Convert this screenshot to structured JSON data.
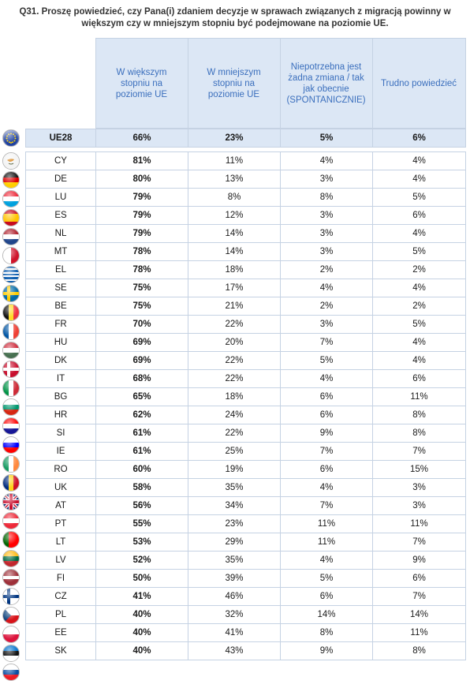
{
  "title_line1": "Q31. Proszę powiedzieć, czy Pana(i) zdaniem decyzje w sprawach związanych z migracją powinny w",
  "title_line2": "większym czy w mniejszym stopniu być podejmowane na poziomie UE.",
  "columns": [
    "W większym stopniu na poziomie UE",
    "W mniejszym stopniu na poziomie UE",
    "Niepotrzebna jest żadna zmiana / tak jak obecnie (SPONTANICZNIE)",
    "Trudno powiedzieć"
  ],
  "ue28": {
    "label": "UE28",
    "values": [
      "66%",
      "23%",
      "5%",
      "6%"
    ]
  },
  "rows": [
    {
      "code": "CY",
      "values": [
        "81%",
        "11%",
        "4%",
        "4%"
      ]
    },
    {
      "code": "DE",
      "values": [
        "80%",
        "13%",
        "3%",
        "4%"
      ]
    },
    {
      "code": "LU",
      "values": [
        "79%",
        "8%",
        "8%",
        "5%"
      ]
    },
    {
      "code": "ES",
      "values": [
        "79%",
        "12%",
        "3%",
        "6%"
      ]
    },
    {
      "code": "NL",
      "values": [
        "79%",
        "14%",
        "3%",
        "4%"
      ]
    },
    {
      "code": "MT",
      "values": [
        "78%",
        "14%",
        "3%",
        "5%"
      ]
    },
    {
      "code": "EL",
      "values": [
        "78%",
        "18%",
        "2%",
        "2%"
      ]
    },
    {
      "code": "SE",
      "values": [
        "75%",
        "17%",
        "4%",
        "4%"
      ]
    },
    {
      "code": "BE",
      "values": [
        "75%",
        "21%",
        "2%",
        "2%"
      ]
    },
    {
      "code": "FR",
      "values": [
        "70%",
        "22%",
        "3%",
        "5%"
      ]
    },
    {
      "code": "HU",
      "values": [
        "69%",
        "20%",
        "7%",
        "4%"
      ]
    },
    {
      "code": "DK",
      "values": [
        "69%",
        "22%",
        "5%",
        "4%"
      ]
    },
    {
      "code": "IT",
      "values": [
        "68%",
        "22%",
        "4%",
        "6%"
      ]
    },
    {
      "code": "BG",
      "values": [
        "65%",
        "18%",
        "6%",
        "11%"
      ]
    },
    {
      "code": "HR",
      "values": [
        "62%",
        "24%",
        "6%",
        "8%"
      ]
    },
    {
      "code": "SI",
      "values": [
        "61%",
        "22%",
        "9%",
        "8%"
      ]
    },
    {
      "code": "IE",
      "values": [
        "61%",
        "25%",
        "7%",
        "7%"
      ]
    },
    {
      "code": "RO",
      "values": [
        "60%",
        "19%",
        "6%",
        "15%"
      ]
    },
    {
      "code": "UK",
      "values": [
        "58%",
        "35%",
        "4%",
        "3%"
      ]
    },
    {
      "code": "AT",
      "values": [
        "56%",
        "34%",
        "7%",
        "3%"
      ]
    },
    {
      "code": "PT",
      "values": [
        "55%",
        "23%",
        "11%",
        "11%"
      ]
    },
    {
      "code": "LT",
      "values": [
        "53%",
        "29%",
        "11%",
        "7%"
      ]
    },
    {
      "code": "LV",
      "values": [
        "52%",
        "35%",
        "4%",
        "9%"
      ]
    },
    {
      "code": "FI",
      "values": [
        "50%",
        "39%",
        "5%",
        "6%"
      ]
    },
    {
      "code": "CZ",
      "values": [
        "41%",
        "46%",
        "6%",
        "7%"
      ]
    },
    {
      "code": "PL",
      "values": [
        "40%",
        "32%",
        "14%",
        "14%"
      ]
    },
    {
      "code": "EE",
      "values": [
        "40%",
        "41%",
        "8%",
        "11%"
      ]
    },
    {
      "code": "SK",
      "values": [
        "40%",
        "43%",
        "9%",
        "8%"
      ]
    }
  ]
}
